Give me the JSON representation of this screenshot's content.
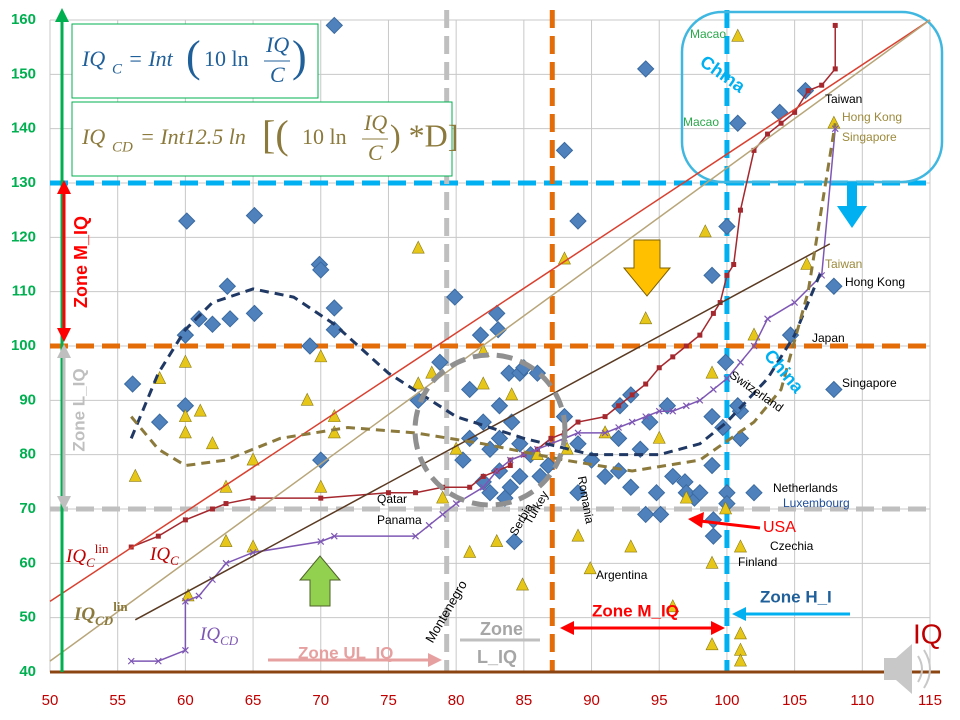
{
  "chart_data": {
    "type": "scatter",
    "xlim": [
      50,
      115
    ],
    "ylim": [
      40,
      160
    ],
    "xticks": [
      50,
      55,
      60,
      65,
      70,
      75,
      80,
      85,
      90,
      95,
      100,
      105,
      110,
      115
    ],
    "yticks": [
      40,
      50,
      60,
      70,
      80,
      90,
      100,
      110,
      120,
      130,
      140,
      150,
      160
    ],
    "grid": true,
    "series": [
      {
        "kind": "points",
        "marker": "diamond",
        "color": "#4f81bd",
        "x": [
          71,
          94,
          88,
          100.8,
          105.8,
          103.9,
          89,
          60.1,
          65.1,
          100,
          63.1,
          69.9,
          70,
          71,
          71,
          65.1,
          79.9,
          83,
          61,
          62,
          63.3,
          60,
          56.1,
          58.1,
          60,
          69.2,
          70,
          77.2,
          78.8,
          81,
          82,
          83.9,
          84.7,
          85,
          86,
          81.8,
          83.1,
          81,
          82.5,
          83.2,
          83.2,
          84.1,
          84.7,
          85.5,
          82.5,
          82,
          83.2,
          84,
          83.6,
          84.7,
          86.2,
          84.3,
          86.8,
          88,
          89,
          89,
          90,
          91,
          92.1,
          92,
          92.9,
          92,
          92.9,
          93.6,
          94.8,
          94,
          95.1,
          96,
          96.9,
          97.6,
          97,
          98,
          98.9,
          98.9,
          99.7,
          101,
          101,
          100.8,
          100,
          100,
          99,
          99,
          98.9,
          102,
          104.7,
          107.9,
          107.9,
          99.9,
          80.5,
          94.3,
          95.6
        ],
        "y": [
          159,
          151,
          136,
          141,
          147,
          143,
          123,
          123,
          124,
          122,
          111,
          115,
          114,
          107,
          103,
          106,
          109,
          106,
          105,
          104,
          105,
          102,
          93,
          86,
          89,
          100,
          79,
          90,
          97,
          92,
          86,
          95,
          95,
          96,
          95,
          102,
          103,
          83,
          81,
          83,
          89,
          86,
          82,
          80,
          73,
          75,
          77,
          74,
          72,
          76,
          76,
          64,
          78,
          87,
          82,
          73,
          79,
          76,
          89,
          83,
          91,
          77,
          74,
          81,
          73,
          69,
          69,
          76,
          75,
          72,
          73,
          73,
          78,
          87,
          85,
          83,
          88,
          89,
          73,
          71,
          68,
          65,
          113,
          73,
          102,
          111,
          92,
          97,
          79,
          86,
          89
        ]
      },
      {
        "kind": "points",
        "marker": "triangle",
        "color": "#e6c619",
        "x": [
          100.8,
          98.4,
          77.2,
          88,
          105.9,
          107.9,
          58.1,
          60,
          60,
          60,
          61.1,
          62,
          63,
          63,
          65,
          65,
          69,
          70,
          70,
          71,
          71,
          56.3,
          77.2,
          78.2,
          79,
          80,
          82,
          82,
          81,
          83,
          84.1,
          84.9,
          86,
          88.2,
          89,
          89.9,
          91,
          92.9,
          94,
          95,
          96,
          97,
          98.9,
          98.9,
          98.9,
          101,
          101,
          101,
          99.9,
          102,
          101,
          60.2
        ],
        "y": [
          157,
          121,
          118,
          116,
          115,
          141,
          94,
          97,
          87,
          84,
          88,
          82,
          74,
          64,
          79,
          63,
          90,
          98,
          74,
          87,
          84,
          76,
          93,
          95,
          72,
          81,
          93,
          99,
          62,
          64,
          91,
          56,
          80,
          81,
          65,
          59,
          84,
          63,
          105,
          83,
          52,
          72,
          60,
          45,
          95,
          47,
          44,
          63,
          70,
          102,
          42,
          54
        ]
      },
      {
        "kind": "line",
        "style": "solid",
        "marker": "square",
        "color": "#a5282e",
        "x": [
          56,
          58,
          60,
          62,
          63,
          65,
          70,
          75,
          77,
          79,
          81,
          82,
          83,
          84,
          84,
          85,
          86,
          87,
          88,
          89,
          91,
          92,
          93,
          94,
          95,
          96,
          97,
          98,
          99,
          99.5,
          100,
          100.5,
          101,
          102,
          103,
          104,
          105,
          106,
          107,
          108,
          108
        ],
        "y": [
          63,
          65,
          68,
          70,
          71,
          72,
          72,
          73,
          73,
          74,
          74,
          76,
          77,
          78,
          79,
          80,
          81,
          83,
          84,
          86,
          87,
          89,
          91,
          93,
          96,
          98,
          100,
          102,
          106,
          108,
          113,
          115,
          125,
          136,
          139,
          141,
          143,
          147,
          148,
          151,
          159
        ]
      },
      {
        "kind": "line",
        "style": "solid",
        "marker": "cross",
        "color": "#7e57b5",
        "x": [
          56,
          58,
          60,
          60,
          61,
          62,
          63,
          65,
          70,
          71,
          77,
          78,
          79,
          80,
          82,
          83,
          84,
          85,
          86,
          87,
          88,
          89,
          91,
          92,
          93,
          94,
          95,
          96,
          97,
          98,
          99,
          100,
          101,
          102,
          103,
          105,
          107,
          108
        ],
        "y": [
          42,
          42,
          44,
          53,
          54,
          57,
          60,
          62,
          64,
          65,
          65,
          67,
          69,
          71,
          74,
          77,
          79,
          80,
          81,
          82,
          83,
          84,
          84,
          85,
          86,
          87,
          88,
          88,
          89,
          90,
          92,
          94,
          97,
          100,
          105,
          108,
          113,
          140
        ]
      },
      {
        "kind": "line",
        "style": "solid",
        "color": "#d9402f",
        "x": [
          50,
          115
        ],
        "y": [
          53,
          160
        ]
      },
      {
        "kind": "line",
        "style": "solid",
        "color": "#b8a67a",
        "x": [
          50,
          115
        ],
        "y": [
          42,
          160
        ]
      },
      {
        "kind": "line",
        "style": "solid",
        "color": "#5a3a22",
        "x": [
          56.3,
          107.6
        ],
        "y": [
          49.6,
          118.8
        ]
      },
      {
        "kind": "line",
        "style": "dashed",
        "color": "#1f3864",
        "x": [
          56,
          58,
          60,
          62,
          65,
          68,
          71,
          75,
          80,
          85,
          90,
          95,
          98,
          100,
          103,
          105,
          107
        ],
        "y": [
          83,
          95,
          103,
          108,
          110.5,
          109,
          104,
          95,
          87,
          83,
          80,
          80,
          82,
          86,
          94,
          102,
          114
        ]
      },
      {
        "kind": "line",
        "style": "dashed",
        "color": "#8c7a3c",
        "x": [
          56,
          58,
          60,
          63,
          67,
          72,
          77,
          82,
          88,
          93,
          98,
          102,
          104,
          106,
          108
        ],
        "y": [
          87,
          81,
          78,
          79,
          83,
          85,
          84,
          82,
          79,
          77,
          79,
          86,
          92,
          110,
          141
        ]
      }
    ],
    "reference_lines": [
      {
        "axis": "y",
        "value": 130,
        "color": "#00b0f0"
      },
      {
        "axis": "y",
        "value": 100,
        "color": "#e36c09"
      },
      {
        "axis": "y",
        "value": 70,
        "color": "#bfbfbf"
      },
      {
        "axis": "x",
        "value": 79.3,
        "color": "#bfbfbf"
      },
      {
        "axis": "x",
        "value": 87.1,
        "color": "#e36c09"
      },
      {
        "axis": "x",
        "value": 100,
        "color": "#00b0f0"
      }
    ],
    "annotations": [
      "Macao",
      "Macao",
      "Taiwan",
      "Hong Kong",
      "Singapore",
      "Taiwan",
      "Hong Kong",
      "Japan",
      "Singapore",
      "Switzerland",
      "Netherlands",
      "Luxembourg",
      "USA",
      "Czechia",
      "Finland",
      "Qatar",
      "Panama",
      "Turkey",
      "Serbia",
      "Romania",
      "Montenegro",
      "Argentina",
      "China",
      "China",
      "Zone M_IQ",
      "Zone L_IQ",
      "Zone UL_IQ",
      "Zone",
      "L_IQ",
      "Zone M_IQ",
      "Zone H_I",
      "IQ"
    ],
    "labels": [
      {
        "text": "IQ",
        "sub": "C",
        "sup": "lin"
      },
      {
        "text": "IQ",
        "sub": "C"
      },
      {
        "text": "IQ",
        "sub": "CD",
        "sup": "lin"
      },
      {
        "text": "IQ",
        "sub": "CD"
      }
    ],
    "formulas": [
      {
        "lhs": "IQ",
        "sub": "C",
        "rhs": "= Int",
        "open": "(",
        "coef": "10 ln",
        "num": "IQ",
        "den": "C",
        "close": ")"
      },
      {
        "lhs": "IQ",
        "sub": "CD",
        "rhs": "= Int12.5 ln",
        "open": "[(",
        "coef": "10 ln",
        "num": "IQ",
        "den": "C",
        "close": ") *D]"
      }
    ]
  }
}
